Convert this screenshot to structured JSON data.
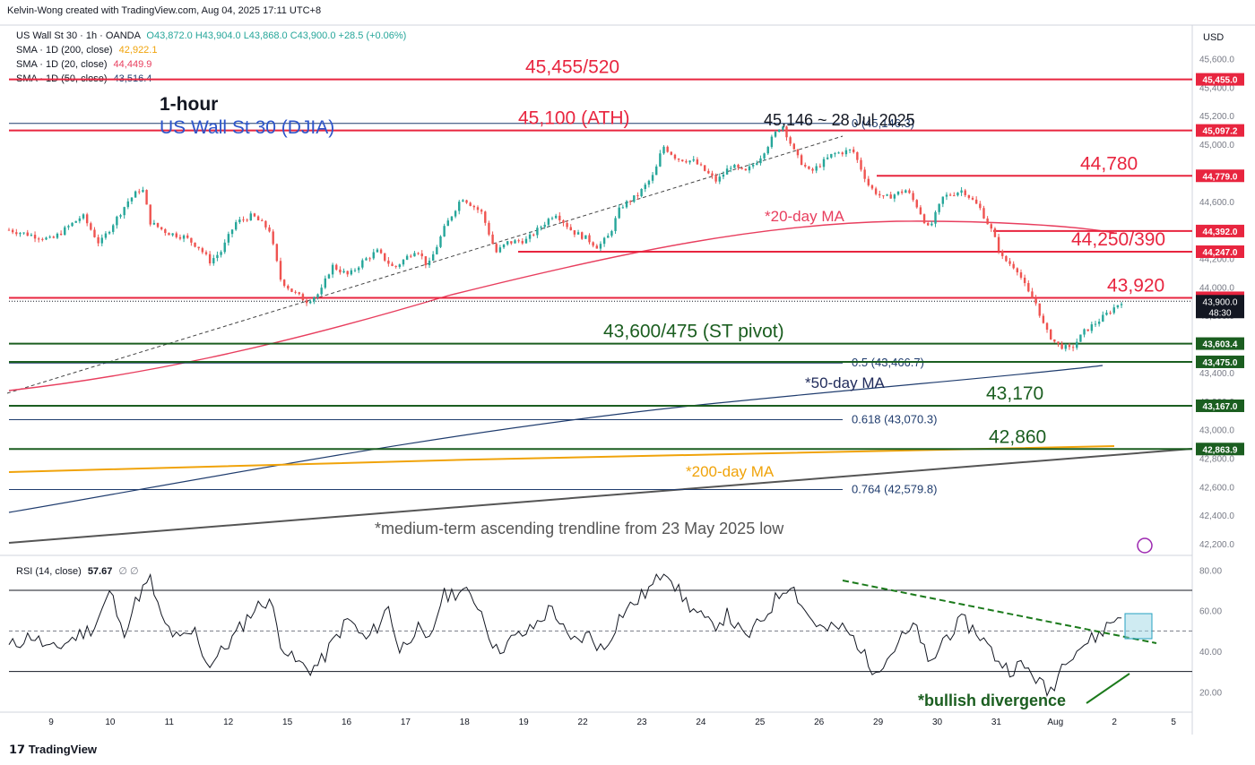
{
  "header": {
    "attribution": "Kelvin-Wong created with TradingView.com, Aug 04, 2025 17:11 UTC+8"
  },
  "legend": {
    "symbol_line": "US Wall St 30 · 1h · OANDA",
    "ohlc": {
      "o": "O43,872.0",
      "h": "H43,904.0",
      "l": "L43,868.0",
      "c": "C43,900.0",
      "chg": "+28.5 (+0.06%)"
    },
    "sma200": {
      "label": "SMA · 1D (200, close)",
      "value": "42,922.1",
      "color": "#f0a30a"
    },
    "sma20": {
      "label": "SMA · 1D (20, close)",
      "value": "44,449.9",
      "color": "#e83e5e"
    },
    "sma50": {
      "label": "SMA · 1D (50, close)",
      "value": "43,516.4",
      "color": "#1f3c6e"
    }
  },
  "currency": "USD",
  "brand": "TradingView",
  "rsi_legend": {
    "label": "RSI (14, close)",
    "value": "57.67",
    "extra": "∅ ∅"
  },
  "colors": {
    "up": "#26a69a",
    "down": "#ef5350",
    "resistance": "#e8253f",
    "support": "#1b5e20",
    "fib": "#1f3c6e",
    "trend": "#555555",
    "sma20": "#e83e5e",
    "sma50": "#1f3c6e",
    "sma200": "#f0a30a",
    "annot_red": "#e8253f",
    "annot_green": "#1b5e20",
    "annot_blue": "#2d55c9"
  },
  "chart_data": [
    {
      "type": "candlestick",
      "title": "US Wall St 30 (DJIA)",
      "timeframe_label": "1-hour",
      "x_ticks": [
        "9",
        "10",
        "11",
        "12",
        "15",
        "16",
        "17",
        "18",
        "19",
        "22",
        "23",
        "24",
        "25",
        "26",
        "29",
        "30",
        "31",
        "Aug",
        "2",
        "5"
      ],
      "y_ticks": [
        "45,600.0",
        "45,400.0",
        "45,200.0",
        "45,000.0",
        "44,800.0",
        "44,600.0",
        "44,400.0",
        "44,200.0",
        "44,000.0",
        "43,800.0",
        "43,600.0",
        "43,400.0",
        "43,200.0",
        "43,000.0",
        "42,800.0",
        "42,600.0",
        "42,400.0",
        "42,200.0"
      ],
      "ylim": [
        42150,
        45760
      ],
      "price_path": [
        [
          0,
          44400
        ],
        [
          1.5,
          44330
        ],
        [
          2.6,
          44500
        ],
        [
          3.2,
          44300
        ],
        [
          4.2,
          44600
        ],
        [
          4.7,
          44700
        ],
        [
          5.0,
          44450
        ],
        [
          5.6,
          44380
        ],
        [
          6.2,
          44350
        ],
        [
          6.7,
          44280
        ],
        [
          7.1,
          44180
        ],
        [
          7.5,
          44250
        ],
        [
          8.0,
          44450
        ],
        [
          8.6,
          44500
        ],
        [
          9.2,
          44400
        ],
        [
          9.6,
          44050
        ],
        [
          10.0,
          43970
        ],
        [
          10.5,
          43900
        ],
        [
          11.0,
          43960
        ],
        [
          11.4,
          44150
        ],
        [
          12.0,
          44080
        ],
        [
          12.5,
          44180
        ],
        [
          13.0,
          44250
        ],
        [
          13.6,
          44130
        ],
        [
          14.4,
          44270
        ],
        [
          14.8,
          44140
        ],
        [
          15.4,
          44420
        ],
        [
          16.0,
          44630
        ],
        [
          16.7,
          44520
        ],
        [
          17.2,
          44240
        ],
        [
          17.6,
          44310
        ],
        [
          18.3,
          44330
        ],
        [
          19.3,
          44520
        ],
        [
          19.9,
          44390
        ],
        [
          20.4,
          44340
        ],
        [
          20.8,
          44280
        ],
        [
          21.2,
          44360
        ],
        [
          21.6,
          44560
        ],
        [
          22.2,
          44640
        ],
        [
          22.8,
          44790
        ],
        [
          23.1,
          44990
        ],
        [
          23.6,
          44900
        ],
        [
          24.2,
          44880
        ],
        [
          25.0,
          44740
        ],
        [
          25.5,
          44850
        ],
        [
          26.0,
          44800
        ],
        [
          26.5,
          44900
        ],
        [
          27.3,
          45146
        ],
        [
          27.8,
          44920
        ],
        [
          28.3,
          44800
        ],
        [
          29.1,
          44930
        ],
        [
          29.8,
          44960
        ],
        [
          30.4,
          44700
        ],
        [
          30.9,
          44620
        ],
        [
          31.7,
          44680
        ],
        [
          32.1,
          44560
        ],
        [
          32.5,
          44400
        ],
        [
          33.0,
          44630
        ],
        [
          33.7,
          44680
        ],
        [
          34.3,
          44550
        ],
        [
          34.7,
          44400
        ],
        [
          35.1,
          44200
        ],
        [
          35.6,
          44130
        ],
        [
          36.0,
          43960
        ],
        [
          36.3,
          43880
        ],
        [
          36.6,
          43700
        ],
        [
          37.0,
          43600
        ],
        [
          37.5,
          43560
        ],
        [
          38.0,
          43690
        ],
        [
          38.6,
          43780
        ],
        [
          39.3,
          43900
        ]
      ],
      "levels": [
        {
          "label": "45,455/520",
          "axis_label": "45,455.0",
          "price": 45455,
          "kind": "resistance"
        },
        {
          "label": "45,100 (ATH)",
          "axis_label": "45,097.2",
          "price": 45097,
          "kind": "resistance"
        },
        {
          "label": "44,780",
          "axis_label": "44,779.0",
          "price": 44779,
          "kind": "resistance"
        },
        {
          "label": "",
          "axis_label": "44,392.0",
          "price": 44392,
          "kind": "resistance"
        },
        {
          "label": "44,250/390",
          "axis_label": "44,247.0",
          "price": 44247,
          "kind": "resistance"
        },
        {
          "label": "43,920",
          "axis_label": "43,924.0",
          "price": 43924,
          "kind": "resistance"
        },
        {
          "label": "43,600/475 (ST pivot)",
          "axis_label": "43,603.4",
          "price": 43603,
          "kind": "support"
        },
        {
          "label": "",
          "axis_label": "43,475.0",
          "price": 43475,
          "kind": "support"
        },
        {
          "label": "43,170",
          "axis_label": "43,167.0",
          "price": 43167,
          "kind": "support"
        },
        {
          "label": "42,860",
          "axis_label": "42,863.9",
          "price": 42864,
          "kind": "support"
        }
      ],
      "last_price": {
        "label": "43,900.0",
        "countdown": "48:30",
        "price": 43900
      },
      "fib_levels": [
        {
          "label": "0 (45,146.3)",
          "price": 45146
        },
        {
          "label": "0.5 (43,466.7)",
          "price": 43467
        },
        {
          "label": "0.618 (43,070.3)",
          "price": 43070
        },
        {
          "label": "0.764 (42,579.8)",
          "price": 42580
        }
      ],
      "annotations": {
        "peak": "45,146 ~ 28 Jul 2025",
        "sma20": "*20-day MA",
        "sma50": "*50-day MA",
        "sma200": "*200-day MA",
        "trendline": "*medium-term ascending trendline from 23 May 2025 low"
      }
    },
    {
      "type": "line",
      "title": "RSI (14, close)",
      "y_ticks": [
        "80.00",
        "60.00",
        "40.00",
        "20.00"
      ],
      "ylim": [
        10,
        85
      ],
      "bands": [
        70,
        50,
        30
      ],
      "series": [
        {
          "name": "RSI (14, close)",
          "values": [
            [
              0,
              42
            ],
            [
              0.8,
              48
            ],
            [
              1.5,
              40
            ],
            [
              2.2,
              46
            ],
            [
              3.0,
              52
            ],
            [
              3.6,
              70
            ],
            [
              4.0,
              48
            ],
            [
              4.6,
              68
            ],
            [
              5.0,
              75
            ],
            [
              5.4,
              55
            ],
            [
              6.0,
              45
            ],
            [
              6.6,
              50
            ],
            [
              7.0,
              33
            ],
            [
              7.4,
              38
            ],
            [
              8.0,
              48
            ],
            [
              8.6,
              60
            ],
            [
              9.2,
              66
            ],
            [
              9.6,
              45
            ],
            [
              10.0,
              36
            ],
            [
              10.6,
              31
            ],
            [
              11.0,
              34
            ],
            [
              11.6,
              48
            ],
            [
              12.0,
              56
            ],
            [
              12.6,
              45
            ],
            [
              13.0,
              52
            ],
            [
              13.4,
              62
            ],
            [
              13.8,
              40
            ],
            [
              14.4,
              52
            ],
            [
              14.8,
              42
            ],
            [
              15.3,
              67
            ],
            [
              16.0,
              70
            ],
            [
              16.6,
              63
            ],
            [
              17.2,
              40
            ],
            [
              17.8,
              46
            ],
            [
              18.4,
              50
            ],
            [
              19.2,
              62
            ],
            [
              19.8,
              44
            ],
            [
              20.5,
              48
            ],
            [
              21.0,
              40
            ],
            [
              21.6,
              58
            ],
            [
              22.2,
              65
            ],
            [
              22.8,
              73
            ],
            [
              23.2,
              82
            ],
            [
              23.7,
              68
            ],
            [
              24.2,
              60
            ],
            [
              24.8,
              52
            ],
            [
              25.4,
              58
            ],
            [
              26.0,
              46
            ],
            [
              26.6,
              55
            ],
            [
              27.2,
              68
            ],
            [
              27.6,
              74
            ],
            [
              28.2,
              58
            ],
            [
              28.8,
              50
            ],
            [
              29.4,
              52
            ],
            [
              30.0,
              44
            ],
            [
              30.4,
              32
            ],
            [
              30.9,
              34
            ],
            [
              31.5,
              46
            ],
            [
              32.1,
              52
            ],
            [
              32.5,
              31
            ],
            [
              33.0,
              46
            ],
            [
              33.7,
              55
            ],
            [
              34.3,
              48
            ],
            [
              34.8,
              38
            ],
            [
              35.3,
              31
            ],
            [
              35.7,
              33
            ],
            [
              36.1,
              30
            ],
            [
              36.4,
              25
            ],
            [
              36.7,
              19
            ],
            [
              37.0,
              26
            ],
            [
              37.3,
              37
            ],
            [
              37.8,
              42
            ],
            [
              38.4,
              47
            ],
            [
              38.9,
              54
            ],
            [
              39.3,
              58
            ]
          ]
        }
      ],
      "annotations": {
        "divergence": "*bullish divergence"
      }
    }
  ]
}
